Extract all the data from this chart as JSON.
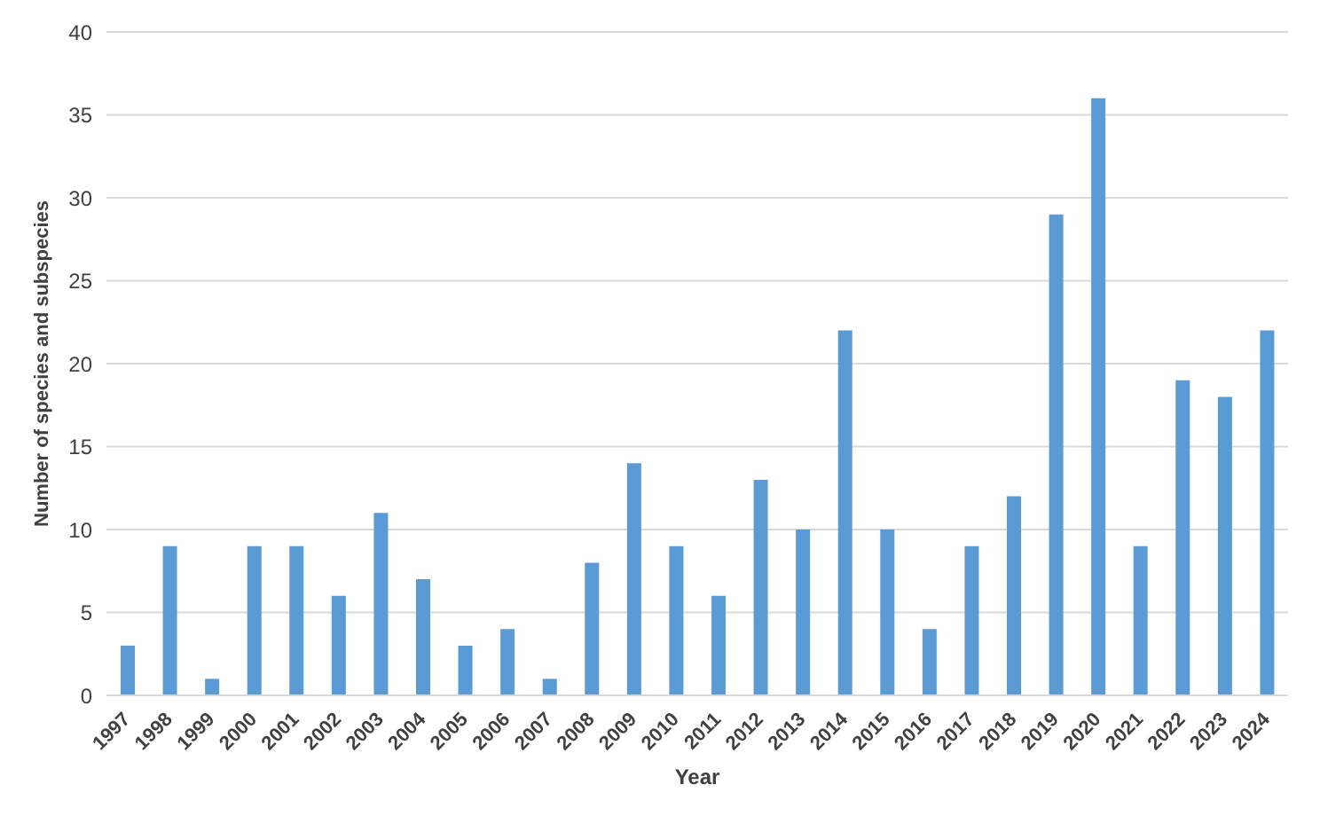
{
  "chart_data": {
    "type": "bar",
    "xlabel": "Year",
    "ylabel": "Number of species and subspecies",
    "categories": [
      "1997",
      "1998",
      "1999",
      "2000",
      "2001",
      "2002",
      "2003",
      "2004",
      "2005",
      "2006",
      "2007",
      "2008",
      "2009",
      "2010",
      "2011",
      "2012",
      "2013",
      "2014",
      "2015",
      "2016",
      "2017",
      "2018",
      "2019",
      "2020",
      "2021",
      "2022",
      "2023",
      "2024"
    ],
    "values": [
      3,
      9,
      1,
      9,
      9,
      6,
      11,
      7,
      3,
      4,
      1,
      8,
      14,
      9,
      6,
      13,
      10,
      22,
      10,
      4,
      9,
      12,
      29,
      36,
      9,
      19,
      18,
      22
    ],
    "color": "#5b9bd5",
    "ylim": [
      0,
      40
    ],
    "yticks": [
      0,
      5,
      10,
      15,
      20,
      25,
      30,
      35,
      40
    ],
    "grid": "y"
  }
}
